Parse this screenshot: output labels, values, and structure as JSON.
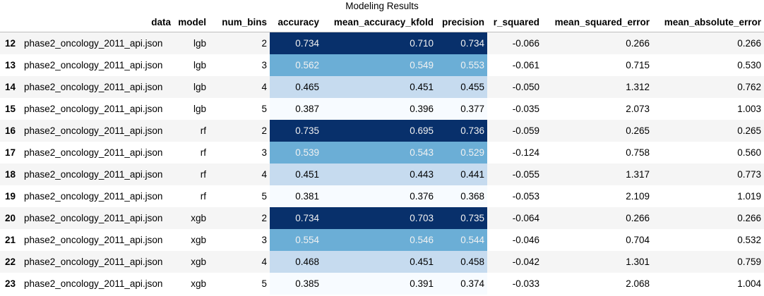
{
  "caption": "Modeling Results",
  "colors": {
    "dark": "#08306b",
    "mid": "#6baed6",
    "light": "#c6dbef",
    "pale": "#f7fbff"
  },
  "columns": [
    "data",
    "model",
    "num_bins",
    "accuracy",
    "mean_accuracy_kfold",
    "precision",
    "r_squared",
    "mean_squared_error",
    "mean_absolute_error"
  ],
  "rows": [
    {
      "index": "12",
      "data": "phase2_oncology_2011_api.json",
      "model": "lgb",
      "num_bins": "2",
      "accuracy": "0.734",
      "mean_accuracy_kfold": "0.710",
      "precision": "0.734",
      "r_squared": "-0.066",
      "mean_squared_error": "0.266",
      "mean_absolute_error": "0.266",
      "shade": "dark"
    },
    {
      "index": "13",
      "data": "phase2_oncology_2011_api.json",
      "model": "lgb",
      "num_bins": "3",
      "accuracy": "0.562",
      "mean_accuracy_kfold": "0.549",
      "precision": "0.553",
      "r_squared": "-0.061",
      "mean_squared_error": "0.715",
      "mean_absolute_error": "0.530",
      "shade": "mid"
    },
    {
      "index": "14",
      "data": "phase2_oncology_2011_api.json",
      "model": "lgb",
      "num_bins": "4",
      "accuracy": "0.465",
      "mean_accuracy_kfold": "0.451",
      "precision": "0.455",
      "r_squared": "-0.050",
      "mean_squared_error": "1.312",
      "mean_absolute_error": "0.762",
      "shade": "light"
    },
    {
      "index": "15",
      "data": "phase2_oncology_2011_api.json",
      "model": "lgb",
      "num_bins": "5",
      "accuracy": "0.387",
      "mean_accuracy_kfold": "0.396",
      "precision": "0.377",
      "r_squared": "-0.035",
      "mean_squared_error": "2.073",
      "mean_absolute_error": "1.003",
      "shade": "pale"
    },
    {
      "index": "16",
      "data": "phase2_oncology_2011_api.json",
      "model": "rf",
      "num_bins": "2",
      "accuracy": "0.735",
      "mean_accuracy_kfold": "0.695",
      "precision": "0.736",
      "r_squared": "-0.059",
      "mean_squared_error": "0.265",
      "mean_absolute_error": "0.265",
      "shade": "dark"
    },
    {
      "index": "17",
      "data": "phase2_oncology_2011_api.json",
      "model": "rf",
      "num_bins": "3",
      "accuracy": "0.539",
      "mean_accuracy_kfold": "0.543",
      "precision": "0.529",
      "r_squared": "-0.124",
      "mean_squared_error": "0.758",
      "mean_absolute_error": "0.560",
      "shade": "mid"
    },
    {
      "index": "18",
      "data": "phase2_oncology_2011_api.json",
      "model": "rf",
      "num_bins": "4",
      "accuracy": "0.451",
      "mean_accuracy_kfold": "0.443",
      "precision": "0.441",
      "r_squared": "-0.055",
      "mean_squared_error": "1.317",
      "mean_absolute_error": "0.773",
      "shade": "light"
    },
    {
      "index": "19",
      "data": "phase2_oncology_2011_api.json",
      "model": "rf",
      "num_bins": "5",
      "accuracy": "0.381",
      "mean_accuracy_kfold": "0.376",
      "precision": "0.368",
      "r_squared": "-0.053",
      "mean_squared_error": "2.109",
      "mean_absolute_error": "1.019",
      "shade": "pale"
    },
    {
      "index": "20",
      "data": "phase2_oncology_2011_api.json",
      "model": "xgb",
      "num_bins": "2",
      "accuracy": "0.734",
      "mean_accuracy_kfold": "0.703",
      "precision": "0.735",
      "r_squared": "-0.064",
      "mean_squared_error": "0.266",
      "mean_absolute_error": "0.266",
      "shade": "dark"
    },
    {
      "index": "21",
      "data": "phase2_oncology_2011_api.json",
      "model": "xgb",
      "num_bins": "3",
      "accuracy": "0.554",
      "mean_accuracy_kfold": "0.546",
      "precision": "0.544",
      "r_squared": "-0.046",
      "mean_squared_error": "0.704",
      "mean_absolute_error": "0.532",
      "shade": "mid"
    },
    {
      "index": "22",
      "data": "phase2_oncology_2011_api.json",
      "model": "xgb",
      "num_bins": "4",
      "accuracy": "0.468",
      "mean_accuracy_kfold": "0.451",
      "precision": "0.458",
      "r_squared": "-0.042",
      "mean_squared_error": "1.301",
      "mean_absolute_error": "0.759",
      "shade": "light"
    },
    {
      "index": "23",
      "data": "phase2_oncology_2011_api.json",
      "model": "xgb",
      "num_bins": "5",
      "accuracy": "0.385",
      "mean_accuracy_kfold": "0.391",
      "precision": "0.374",
      "r_squared": "-0.033",
      "mean_squared_error": "2.068",
      "mean_absolute_error": "1.004",
      "shade": "pale"
    }
  ]
}
